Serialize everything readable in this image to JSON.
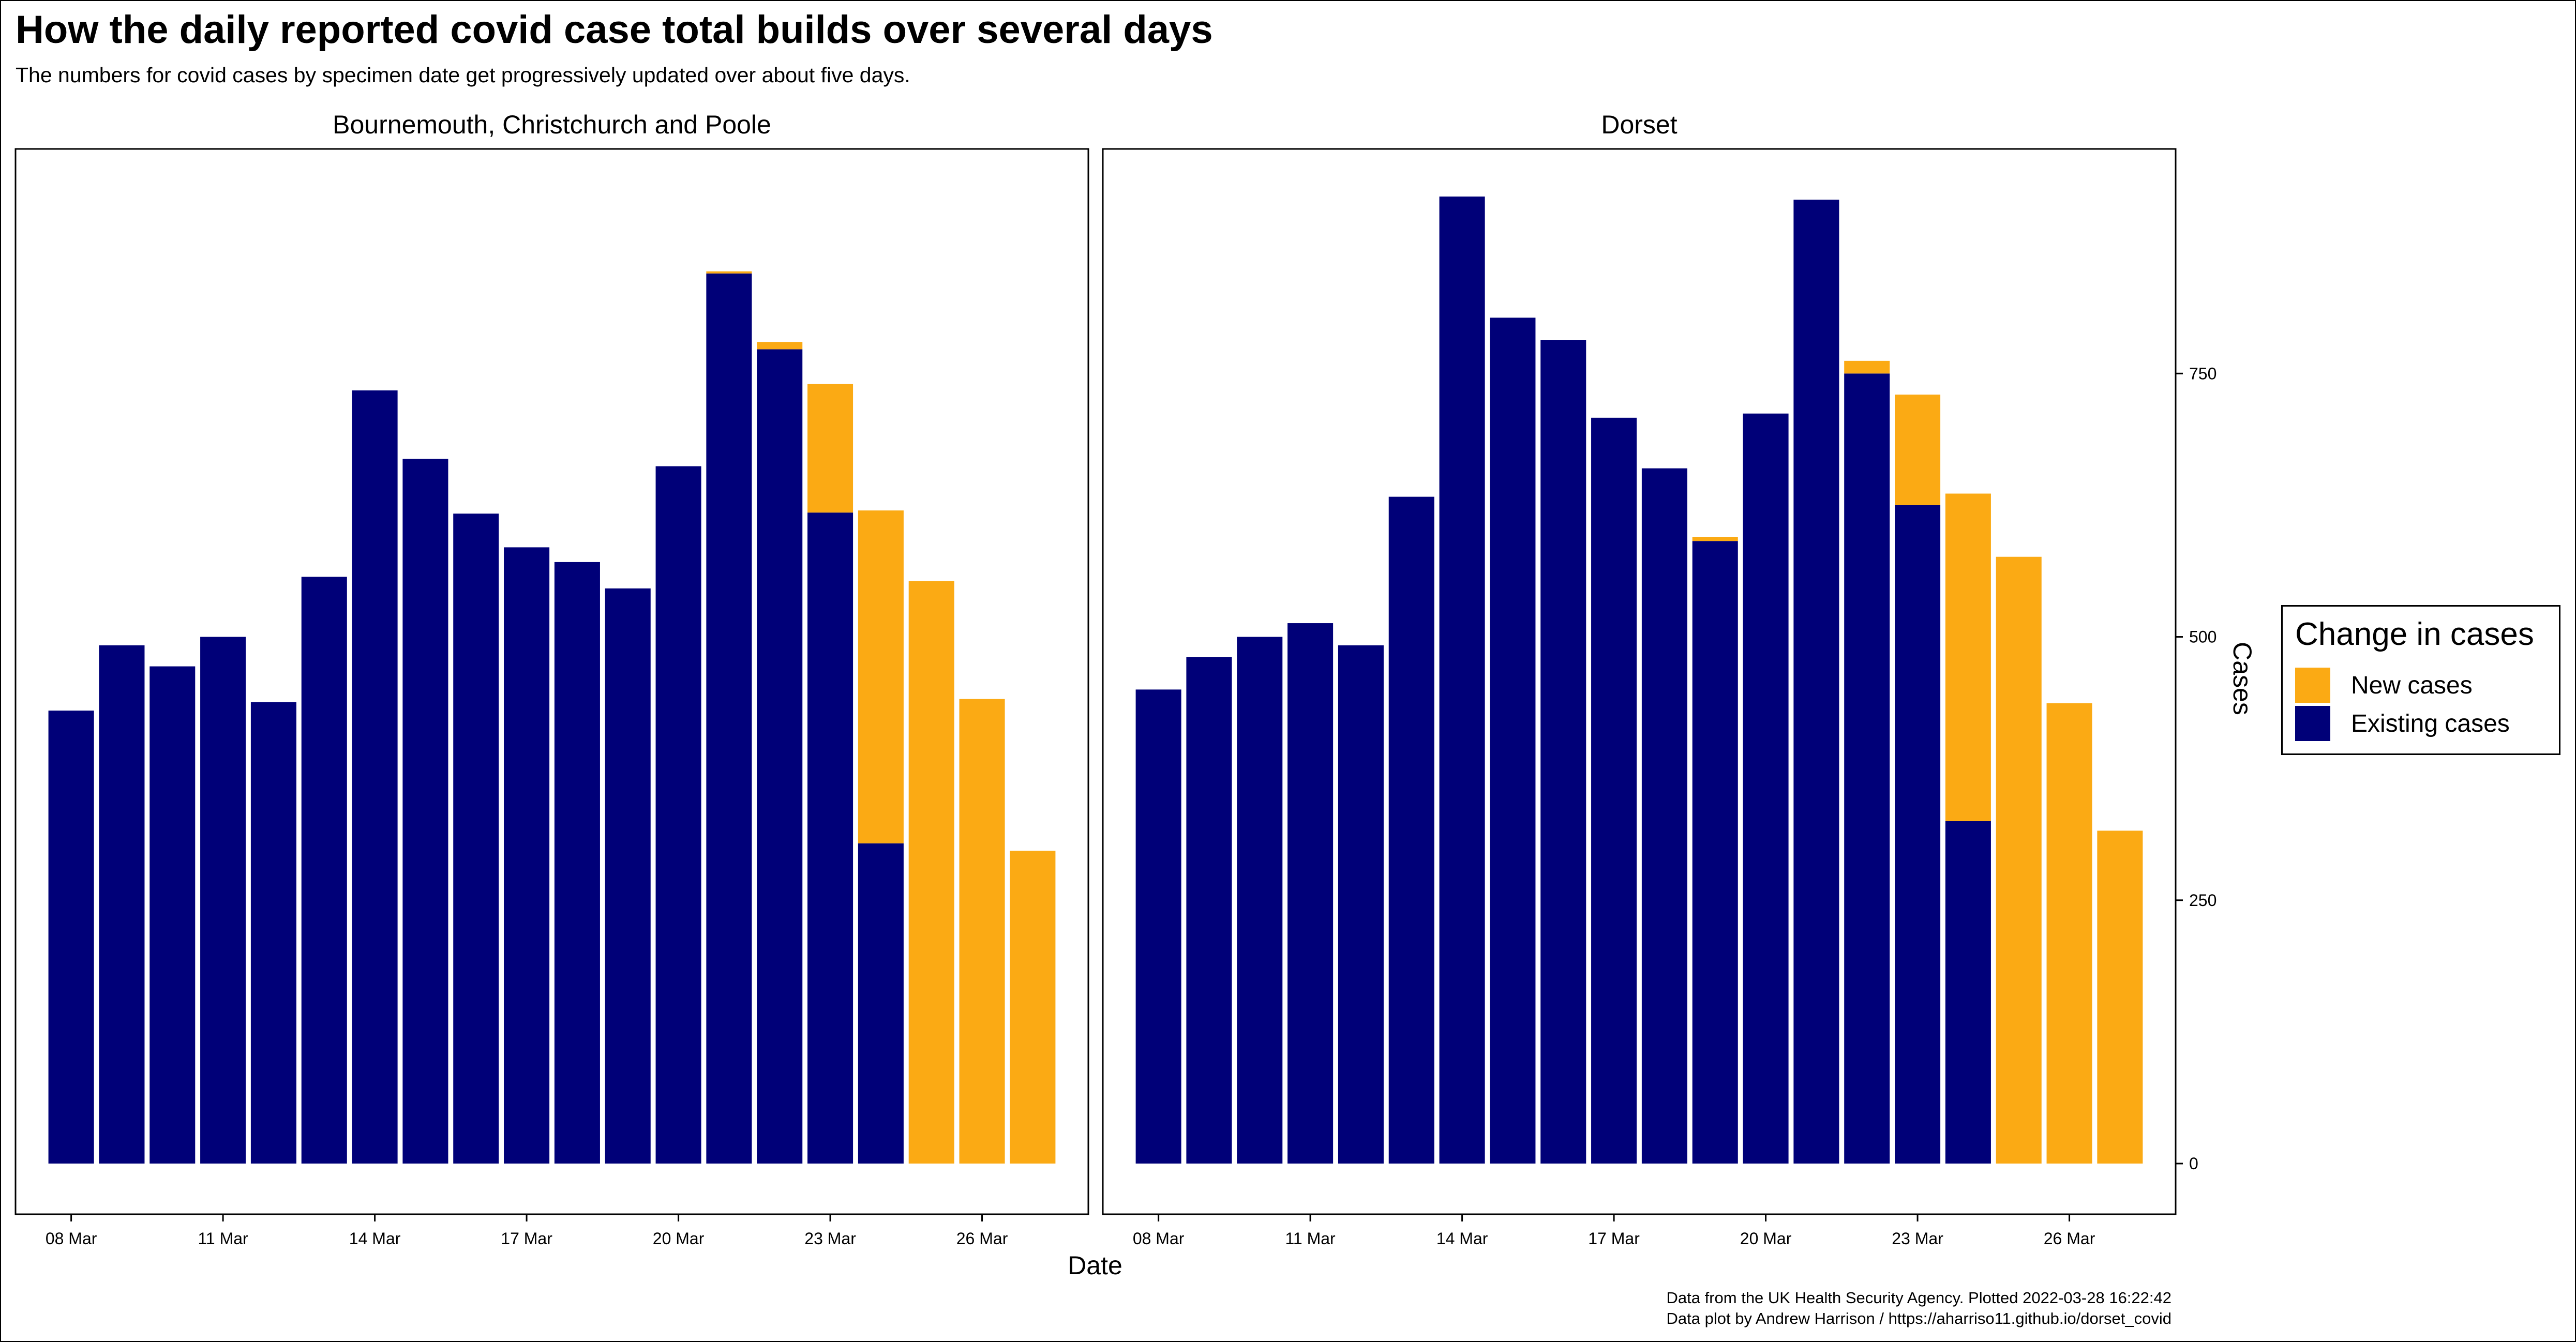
{
  "title": "How the daily reported covid case total builds over several days",
  "subtitle": "The numbers for covid cases by specimen date get progressively updated over about five days.",
  "colors": {
    "new_cases": "#FBAA14",
    "existing_cases": "#000078"
  },
  "legend": {
    "title": "Change in cases",
    "items": [
      {
        "label": "New cases",
        "color": "#FBAA14"
      },
      {
        "label": "Existing cases",
        "color": "#000078"
      }
    ]
  },
  "caption": {
    "line1": "Data from the UK Health Security Agency. Plotted 2022-03-28 16:22:42",
    "line2": "Data plot by Andrew Harrison / https://aharriso11.github.io/dorset_covid"
  },
  "chart_data": {
    "type": "bar",
    "stacked": true,
    "xlabel": "Date",
    "ylabel": "Cases",
    "ylim": [
      0,
      920
    ],
    "yticks": [
      0,
      250,
      500,
      750
    ],
    "categories": [
      "08 Mar",
      "09 Mar",
      "10 Mar",
      "11 Mar",
      "12 Mar",
      "13 Mar",
      "14 Mar",
      "15 Mar",
      "16 Mar",
      "17 Mar",
      "18 Mar",
      "19 Mar",
      "20 Mar",
      "21 Mar",
      "22 Mar",
      "23 Mar",
      "24 Mar",
      "25 Mar",
      "26 Mar",
      "27 Mar"
    ],
    "tick_labels": [
      "08 Mar",
      "11 Mar",
      "14 Mar",
      "17 Mar",
      "20 Mar",
      "23 Mar",
      "26 Mar"
    ],
    "tick_indices": [
      0,
      3,
      6,
      9,
      12,
      15,
      18
    ],
    "legend_position": "right",
    "grid": false,
    "panels": [
      {
        "title": "Bournemouth, Christchurch and Poole",
        "series": [
          {
            "name": "Existing cases",
            "values": [
              430,
              492,
              472,
              500,
              438,
              557,
              734,
              669,
              617,
              585,
              571,
              546,
              662,
              845,
              773,
              618,
              304,
              0,
              0,
              0
            ]
          },
          {
            "name": "New cases",
            "values": [
              0,
              0,
              0,
              0,
              0,
              0,
              0,
              0,
              0,
              0,
              0,
              0,
              0,
              2,
              7,
              122,
              316,
              553,
              441,
              297
            ]
          }
        ]
      },
      {
        "title": "Dorset",
        "series": [
          {
            "name": "Existing cases",
            "values": [
              450,
              481,
              500,
              513,
              492,
              633,
              918,
              803,
              782,
              708,
              660,
              591,
              712,
              915,
              750,
              625,
              325,
              0,
              0,
              0
            ]
          },
          {
            "name": "New cases",
            "values": [
              0,
              0,
              0,
              0,
              0,
              0,
              0,
              0,
              0,
              0,
              0,
              4,
              0,
              0,
              12,
              105,
              311,
              576,
              437,
              316
            ]
          }
        ]
      }
    ]
  }
}
